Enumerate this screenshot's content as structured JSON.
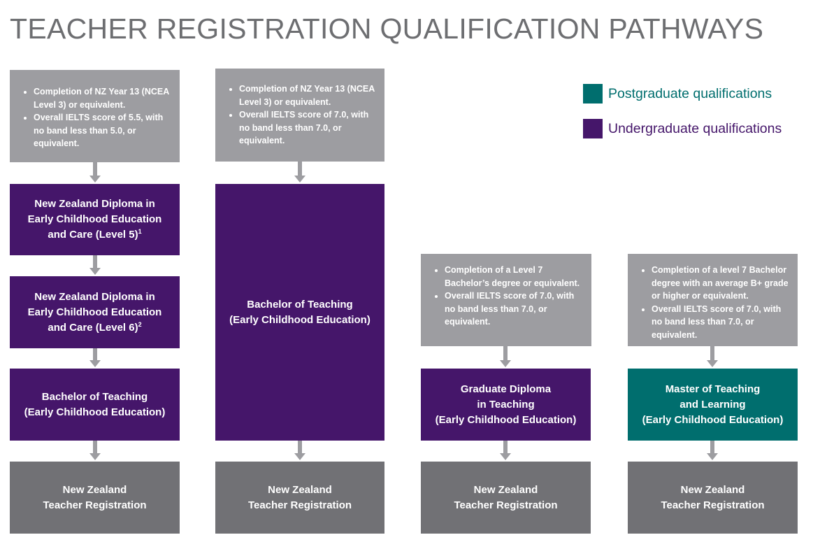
{
  "title": "TEACHER REGISTRATION QUALIFICATION PATHWAYS",
  "colors": {
    "postgraduate": "#006e6e",
    "undergraduate": "#45166a",
    "requirement": "#9d9da1",
    "registration": "#717175",
    "title": "#6d6e71"
  },
  "legend": [
    {
      "label": "Postgraduate qualifications",
      "color": "#006e6e"
    },
    {
      "label": "Undergraduate qualifications",
      "color": "#45166a"
    }
  ],
  "pathways": [
    {
      "requirements": [
        "Completion of NZ Year 13 (NCEA Level 3) or equivalent.",
        "Overall IELTS score of 5.5, with no band less than 5.0, or equivalent."
      ],
      "steps": [
        {
          "line1": "New Zealand Diploma in",
          "line2": "Early Childhood Education",
          "line3": "and Care (Level 5)",
          "footnote": "1"
        },
        {
          "line1": "New Zealand Diploma in",
          "line2": "Early Childhood Education",
          "line3": "and Care (Level 6)",
          "footnote": "2"
        },
        {
          "line1": "Bachelor of Teaching",
          "line2": "(Early Childhood Education)"
        }
      ],
      "outcome": {
        "line1": "New Zealand",
        "line2": "Teacher Registration"
      }
    },
    {
      "requirements": [
        "Completion of NZ Year 13 (NCEA Level 3) or equivalent.",
        "Overall IELTS score of 7.0, with no band less than 7.0, or equivalent."
      ],
      "steps": [
        {
          "line1": "Bachelor of Teaching",
          "line2": "(Early Childhood Education)"
        }
      ],
      "outcome": {
        "line1": "New Zealand",
        "line2": "Teacher Registration"
      }
    },
    {
      "requirements": [
        "Completion of a Level 7 Bachelor’s degree or equivalent.",
        "Overall IELTS score of 7.0, with no band less than 7.0, or equivalent."
      ],
      "steps": [
        {
          "line1": "Graduate Diploma",
          "line2": "in Teaching",
          "line3": "(Early Childhood Education)"
        }
      ],
      "outcome": {
        "line1": "New Zealand",
        "line2": "Teacher Registration"
      }
    },
    {
      "requirements": [
        "Completion of a level 7 Bachelor degree with an average B+ grade or higher or equivalent.",
        "Overall IELTS score of 7.0, with no band less than 7.0, or equivalent."
      ],
      "steps": [
        {
          "line1": "Master of Teaching",
          "line2": "and Learning",
          "line3": "(Early Childhood Education)"
        }
      ],
      "outcome": {
        "line1": "New Zealand",
        "line2": "Teacher Registration"
      }
    }
  ]
}
